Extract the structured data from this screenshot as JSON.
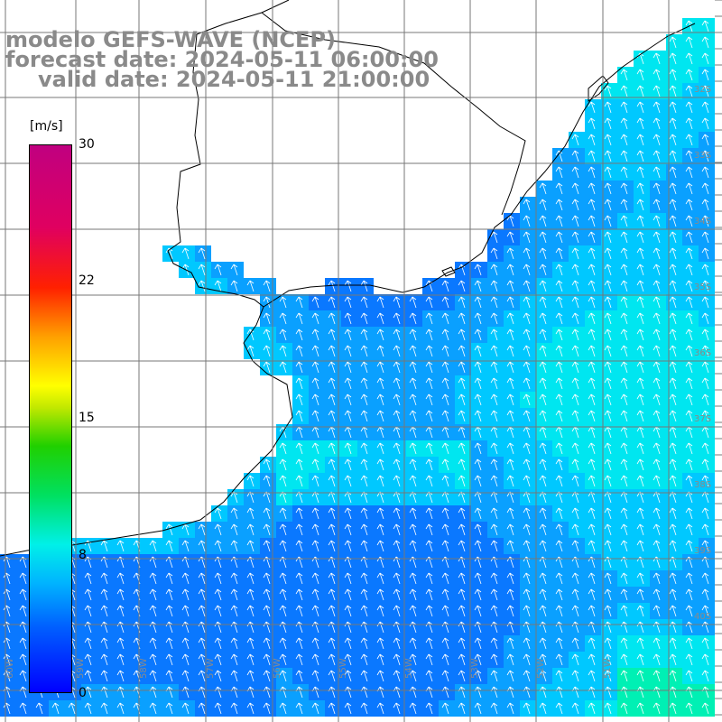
{
  "title": {
    "line1": "modelo GEFS-WAVE (NCEP)",
    "line2": "forecast date: 2024-05-11 06:00:00",
    "line3": "valid date: 2024-05-11 21:00:00"
  },
  "colorbar": {
    "unit": "[m/s]",
    "ticks": [
      "30",
      "22",
      "15",
      "8",
      "0"
    ],
    "tick_values": [
      30,
      22,
      15,
      8,
      0
    ],
    "range": [
      0,
      30
    ],
    "colors": [
      "#0000ff",
      "#00b4ff",
      "#00f0e8",
      "#20d000",
      "#ffff00",
      "#ff2000",
      "#c00080"
    ]
  },
  "lat_labels": [
    "32S",
    "33S",
    "34S",
    "35S",
    "36S",
    "37S",
    "38S",
    "39S",
    "40S"
  ],
  "lon_labels": [
    "60W",
    "59W",
    "58W",
    "57W",
    "56W",
    "55W",
    "54W",
    "53W",
    "52W",
    "51W"
  ],
  "colors": {
    "land": "#ffffff",
    "ocean_low": "#0080ff",
    "ocean_mid": "#00c8ff",
    "ocean_high": "#00f0c8",
    "grid": "#777777",
    "arrows": "#ffffff"
  }
}
